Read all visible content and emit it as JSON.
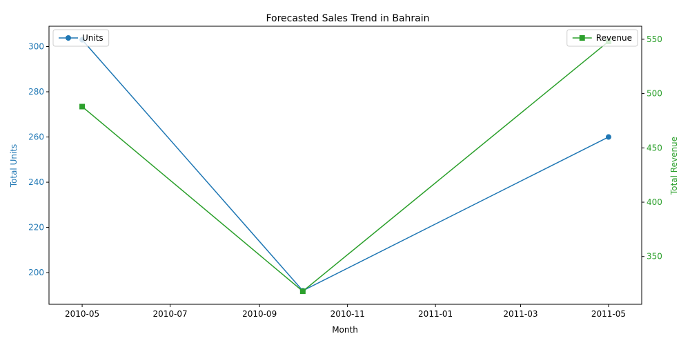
{
  "chart_data": {
    "type": "line",
    "title": "Forecasted Sales Trend in Bahrain",
    "xlabel": "Month",
    "ylabel_left": "Total Units",
    "ylabel_right": "Total Revenue",
    "x": [
      "2010-05-01",
      "2010-10-01",
      "2011-05-01"
    ],
    "xlim": [
      "2010-04-08",
      "2011-05-24"
    ],
    "x_ticks": [
      "2010-05",
      "2010-07",
      "2010-09",
      "2010-11",
      "2011-01",
      "2011-03",
      "2011-05"
    ],
    "ylim_left": [
      186,
      309
    ],
    "ylim_right": [
      306,
      562
    ],
    "y_ticks_left": [
      200,
      220,
      240,
      260,
      280,
      300
    ],
    "y_ticks_right": [
      350,
      400,
      450,
      500,
      550
    ],
    "series": [
      {
        "name": "Units",
        "axis": "left",
        "marker": "circle",
        "color": "#1f77b4",
        "values": [
          303,
          192,
          260
        ]
      },
      {
        "name": "Revenue",
        "axis": "right",
        "marker": "square",
        "color": "#2ca02c",
        "values": [
          488,
          318,
          548
        ]
      }
    ],
    "legends": [
      {
        "series": "Units",
        "placement": "top-left"
      },
      {
        "series": "Revenue",
        "placement": "top-right"
      }
    ],
    "grid": false
  }
}
